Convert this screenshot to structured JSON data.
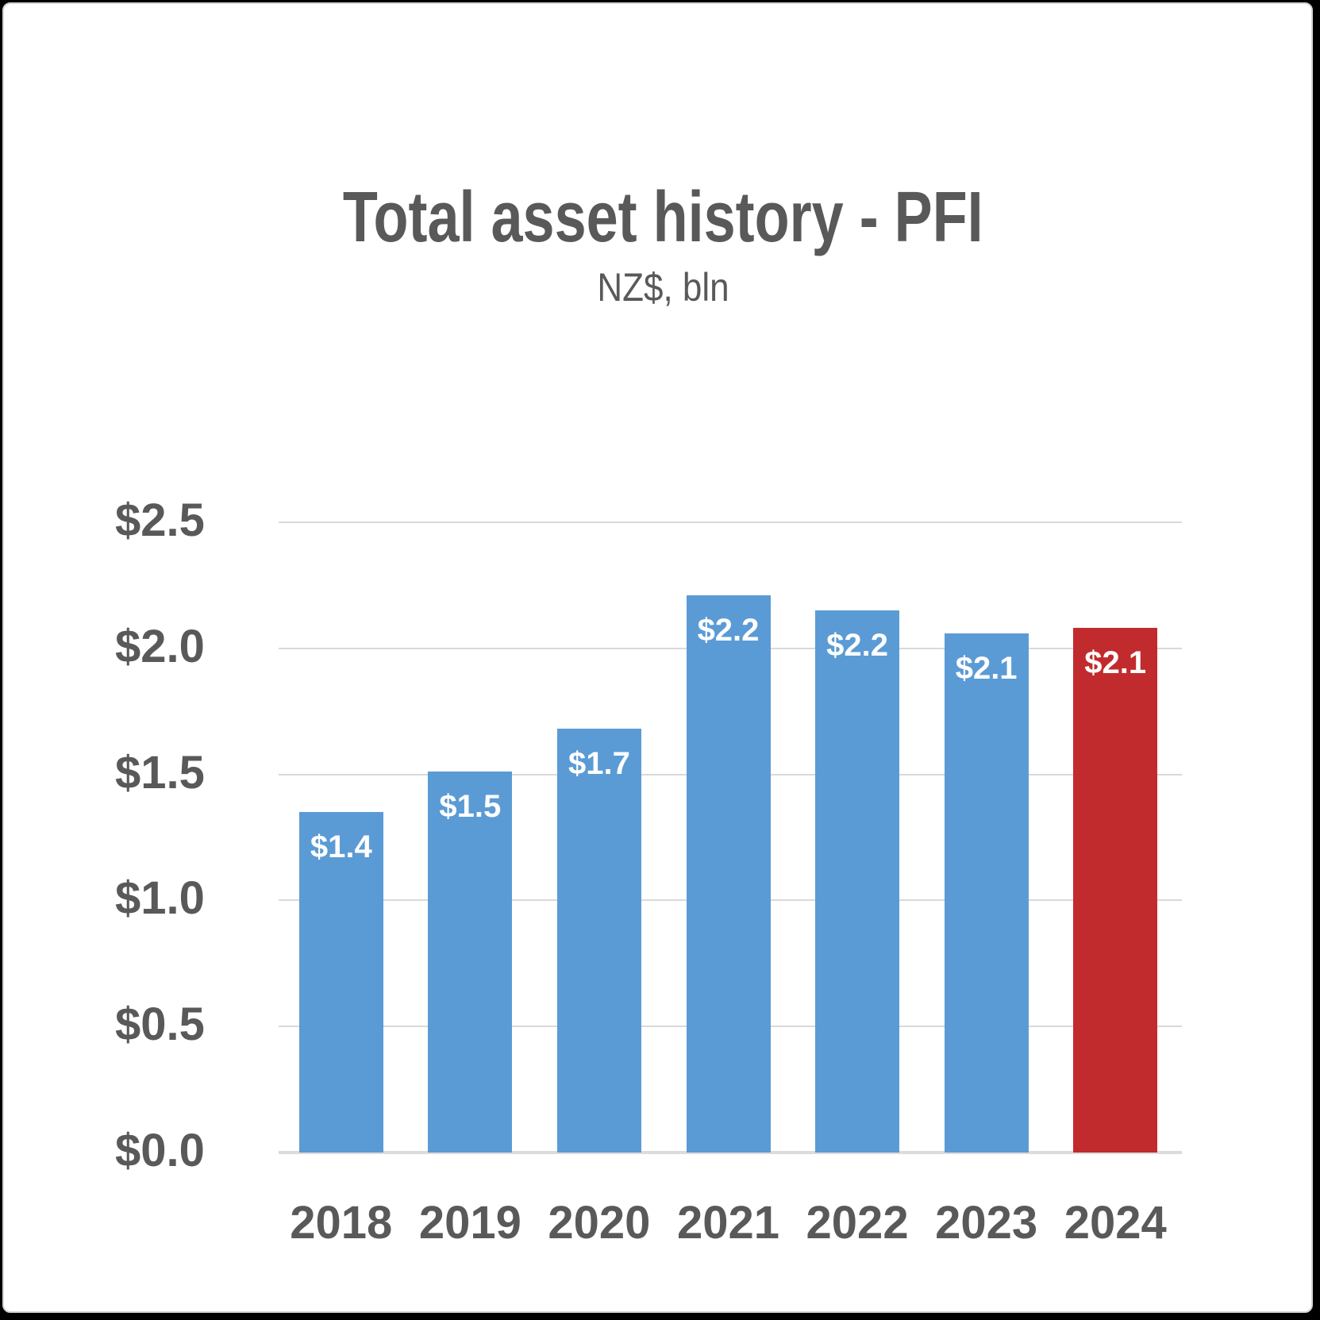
{
  "slide": {
    "background": "#FFFFFF",
    "border_color": "#D4D4D4",
    "frame_color": "#000000"
  },
  "chart_data": {
    "type": "bar",
    "title": "Total asset history - PFI",
    "subtitle": "NZ$, bln",
    "categories": [
      "2018",
      "2019",
      "2020",
      "2021",
      "2022",
      "2023",
      "2024"
    ],
    "values": [
      1.35,
      1.51,
      1.68,
      2.21,
      2.15,
      2.06,
      2.08
    ],
    "bar_labels": [
      "$1.4",
      "$1.5",
      "$1.7",
      "$2.2",
      "$2.2",
      "$2.1",
      "$2.1"
    ],
    "highlight_index": 6,
    "y_tick_labels": [
      "$2.5",
      "$2.0",
      "$1.5",
      "$1.0",
      "$0.5",
      "$0.0"
    ],
    "y_tick_values": [
      2.5,
      2.0,
      1.5,
      1.0,
      0.5,
      0.0
    ],
    "ylim": [
      0,
      2.5
    ],
    "grid": true,
    "legend": "none",
    "colors": {
      "bar_default": "#5B9BD5",
      "bar_highlight": "#C12B2D",
      "gridline": "#D9D9D9",
      "axis_text": "#595959",
      "bar_label_text": "#FFFFFF",
      "title_text": "#595959"
    }
  }
}
